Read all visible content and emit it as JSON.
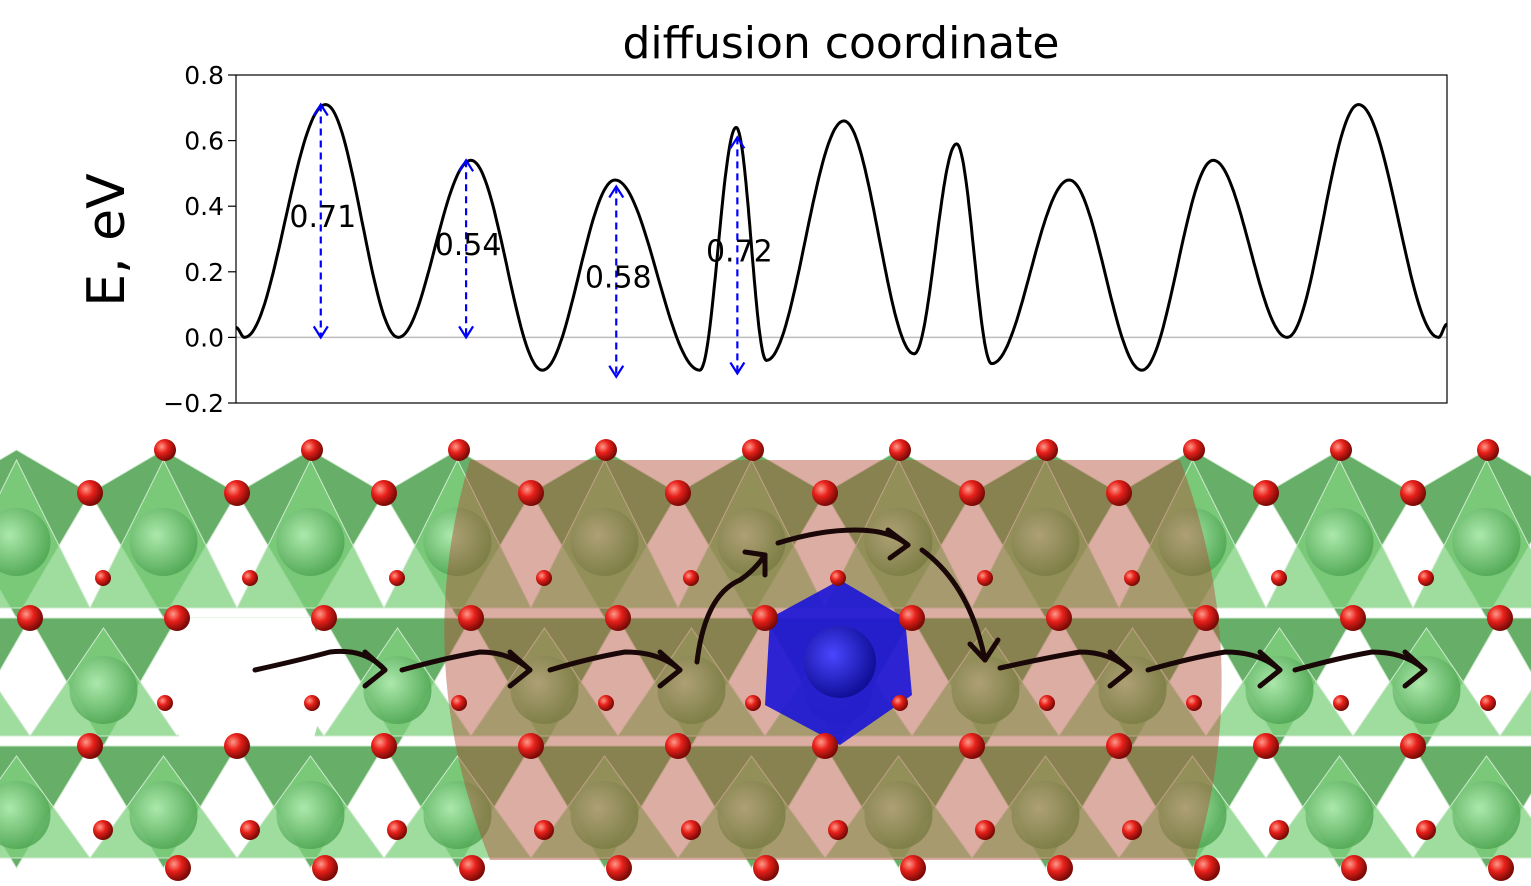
{
  "chart_data": {
    "type": "line",
    "title": "diffusion coordinate",
    "xlabel": "",
    "ylabel": "E, eV",
    "ylim": [
      -0.2,
      0.8
    ],
    "yticks": [
      -0.2,
      0.0,
      0.2,
      0.4,
      0.6,
      0.8
    ],
    "ytick_labels": [
      "−0.2",
      "0.0",
      "0.2",
      "0.4",
      "0.6",
      "0.8"
    ],
    "xticks_shown": false,
    "grid": false,
    "reference_line_y": 0.0,
    "series": [
      {
        "color": "#000000",
        "peaks": [
          {
            "x": 0.074,
            "y": 0.71
          },
          {
            "x": 0.194,
            "y": 0.54
          },
          {
            "x": 0.313,
            "y": 0.48
          },
          {
            "x": 0.413,
            "y": 0.64
          },
          {
            "x": 0.502,
            "y": 0.66
          },
          {
            "x": 0.595,
            "y": 0.59
          },
          {
            "x": 0.688,
            "y": 0.48
          },
          {
            "x": 0.807,
            "y": 0.54
          },
          {
            "x": 0.927,
            "y": 0.71
          }
        ],
        "minima": [
          {
            "x": 0.0,
            "y": 0.03
          },
          {
            "x": 0.007,
            "y": 0.0
          },
          {
            "x": 0.134,
            "y": 0.0
          },
          {
            "x": 0.253,
            "y": -0.1
          },
          {
            "x": 0.383,
            "y": -0.1
          },
          {
            "x": 0.438,
            "y": -0.07
          },
          {
            "x": 0.56,
            "y": -0.05
          },
          {
            "x": 0.624,
            "y": -0.08
          },
          {
            "x": 0.748,
            "y": -0.1
          },
          {
            "x": 0.868,
            "y": 0.0
          },
          {
            "x": 0.993,
            "y": 0.0
          },
          {
            "x": 1.0,
            "y": 0.04
          }
        ]
      }
    ],
    "annotations": [
      {
        "label": "0.71",
        "x": 0.07,
        "y_low": 0.0,
        "y_high": 0.71,
        "color": "#0000ff"
      },
      {
        "label": "0.54",
        "x": 0.19,
        "y_low": 0.0,
        "y_high": 0.54,
        "color": "#0000ff"
      },
      {
        "label": "0.58",
        "x": 0.314,
        "y_low": -0.12,
        "y_high": 0.46,
        "color": "#0000ff"
      },
      {
        "label": "0.72",
        "x": 0.414,
        "y_low": -0.11,
        "y_high": 0.61,
        "color": "#0000ff"
      }
    ]
  },
  "lattice": {
    "octahedra_color": "#56b85a",
    "oxygen_color": "#e8201a",
    "highlight_region_color": "#c0503c",
    "migrating_site_color": "#1a14d8",
    "arrow_color": "#1a0808",
    "hop_arrow_count": 10
  }
}
